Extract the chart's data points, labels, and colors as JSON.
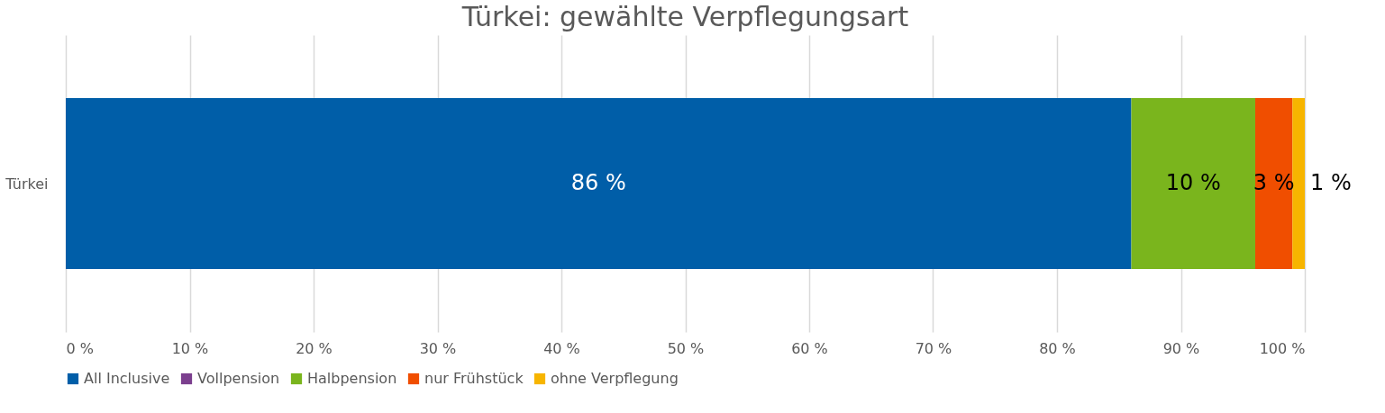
{
  "chart_data": {
    "type": "bar",
    "orientation": "horizontal",
    "stacked": true,
    "title": "Türkei: gewählte Verpflegungsart",
    "categories": [
      "Türkei"
    ],
    "series": [
      {
        "name": "All Inclusive",
        "color": "#005ea8",
        "values": [
          86
        ],
        "value_labels": [
          "86 %"
        ]
      },
      {
        "name": "Vollpension",
        "color": "#7b3f8e",
        "values": [
          0
        ],
        "value_labels": [
          null
        ]
      },
      {
        "name": "Halbpension",
        "color": "#7ab51d",
        "values": [
          10
        ],
        "value_labels": [
          "10 %"
        ]
      },
      {
        "name": "nur Frühstück",
        "color": "#f04e00",
        "values": [
          3
        ],
        "value_labels": [
          "3 %"
        ]
      },
      {
        "name": "ohne Verpflegung",
        "color": "#f7b500",
        "values": [
          1
        ],
        "value_labels": [
          "1 %"
        ]
      }
    ],
    "xlim": [
      0,
      100
    ],
    "xticks": [
      {
        "value": 0,
        "label": "0 %"
      },
      {
        "value": 10,
        "label": "10 %"
      },
      {
        "value": 20,
        "label": "20 %"
      },
      {
        "value": 30,
        "label": "30 %"
      },
      {
        "value": 40,
        "label": "40 %"
      },
      {
        "value": 50,
        "label": "50 %"
      },
      {
        "value": 60,
        "label": "60 %"
      },
      {
        "value": 70,
        "label": "70 %"
      },
      {
        "value": 80,
        "label": "80 %"
      },
      {
        "value": 90,
        "label": "90 %"
      },
      {
        "value": 100,
        "label": "100 %"
      }
    ],
    "grid": "x",
    "legend": "bottom"
  }
}
